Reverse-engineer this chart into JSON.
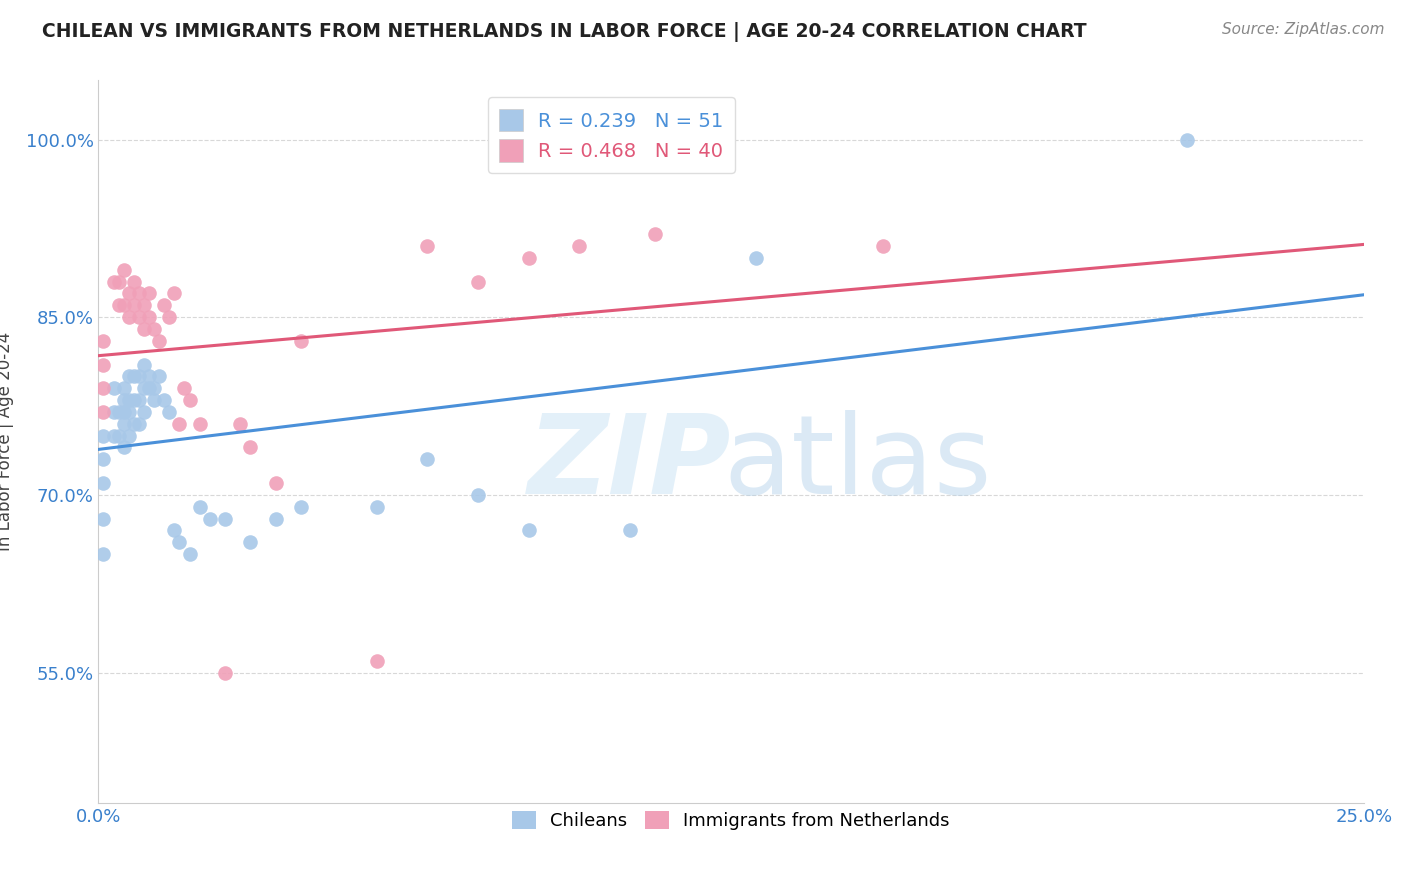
{
  "title": "CHILEAN VS IMMIGRANTS FROM NETHERLANDS IN LABOR FORCE | AGE 20-24 CORRELATION CHART",
  "source_text": "Source: ZipAtlas.com",
  "ylabel": "In Labor Force | Age 20-24",
  "xlim": [
    0.0,
    0.25
  ],
  "ylim": [
    0.44,
    1.05
  ],
  "ytick_positions": [
    0.55,
    0.7,
    0.85,
    1.0
  ],
  "yticklabels": [
    "55.0%",
    "70.0%",
    "85.0%",
    "100.0%"
  ],
  "blue_color": "#a8c8e8",
  "pink_color": "#f0a0b8",
  "blue_line_color": "#4a90d9",
  "pink_line_color": "#e05878",
  "R_blue": 0.239,
  "N_blue": 51,
  "R_pink": 0.468,
  "N_pink": 40,
  "chileans_x": [
    0.001,
    0.001,
    0.001,
    0.001,
    0.001,
    0.003,
    0.003,
    0.003,
    0.004,
    0.004,
    0.005,
    0.005,
    0.005,
    0.005,
    0.005,
    0.006,
    0.006,
    0.006,
    0.006,
    0.007,
    0.007,
    0.007,
    0.008,
    0.008,
    0.008,
    0.009,
    0.009,
    0.009,
    0.01,
    0.01,
    0.011,
    0.011,
    0.012,
    0.013,
    0.014,
    0.015,
    0.016,
    0.018,
    0.02,
    0.022,
    0.025,
    0.03,
    0.035,
    0.04,
    0.055,
    0.065,
    0.075,
    0.085,
    0.105,
    0.13,
    0.215
  ],
  "chileans_y": [
    0.75,
    0.73,
    0.71,
    0.68,
    0.65,
    0.79,
    0.77,
    0.75,
    0.77,
    0.75,
    0.79,
    0.78,
    0.77,
    0.76,
    0.74,
    0.8,
    0.78,
    0.77,
    0.75,
    0.8,
    0.78,
    0.76,
    0.8,
    0.78,
    0.76,
    0.81,
    0.79,
    0.77,
    0.8,
    0.79,
    0.79,
    0.78,
    0.8,
    0.78,
    0.77,
    0.67,
    0.66,
    0.65,
    0.69,
    0.68,
    0.68,
    0.66,
    0.68,
    0.69,
    0.69,
    0.73,
    0.7,
    0.67,
    0.67,
    0.9,
    1.0
  ],
  "netherlands_x": [
    0.001,
    0.001,
    0.001,
    0.001,
    0.003,
    0.004,
    0.004,
    0.005,
    0.005,
    0.006,
    0.006,
    0.007,
    0.007,
    0.008,
    0.008,
    0.009,
    0.009,
    0.01,
    0.01,
    0.011,
    0.012,
    0.013,
    0.014,
    0.015,
    0.016,
    0.017,
    0.018,
    0.02,
    0.025,
    0.028,
    0.03,
    0.035,
    0.04,
    0.055,
    0.065,
    0.075,
    0.085,
    0.095,
    0.11,
    0.155
  ],
  "netherlands_y": [
    0.83,
    0.81,
    0.79,
    0.77,
    0.88,
    0.88,
    0.86,
    0.89,
    0.86,
    0.87,
    0.85,
    0.88,
    0.86,
    0.87,
    0.85,
    0.86,
    0.84,
    0.87,
    0.85,
    0.84,
    0.83,
    0.86,
    0.85,
    0.87,
    0.76,
    0.79,
    0.78,
    0.76,
    0.55,
    0.76,
    0.74,
    0.71,
    0.83,
    0.56,
    0.91,
    0.88,
    0.9,
    0.91,
    0.92,
    0.91
  ],
  "grid_color": "#d8d8d8",
  "background_color": "#ffffff",
  "title_color": "#222222",
  "axis_label_color": "#444444",
  "tick_label_color": "#3a80cc",
  "source_color": "#888888"
}
